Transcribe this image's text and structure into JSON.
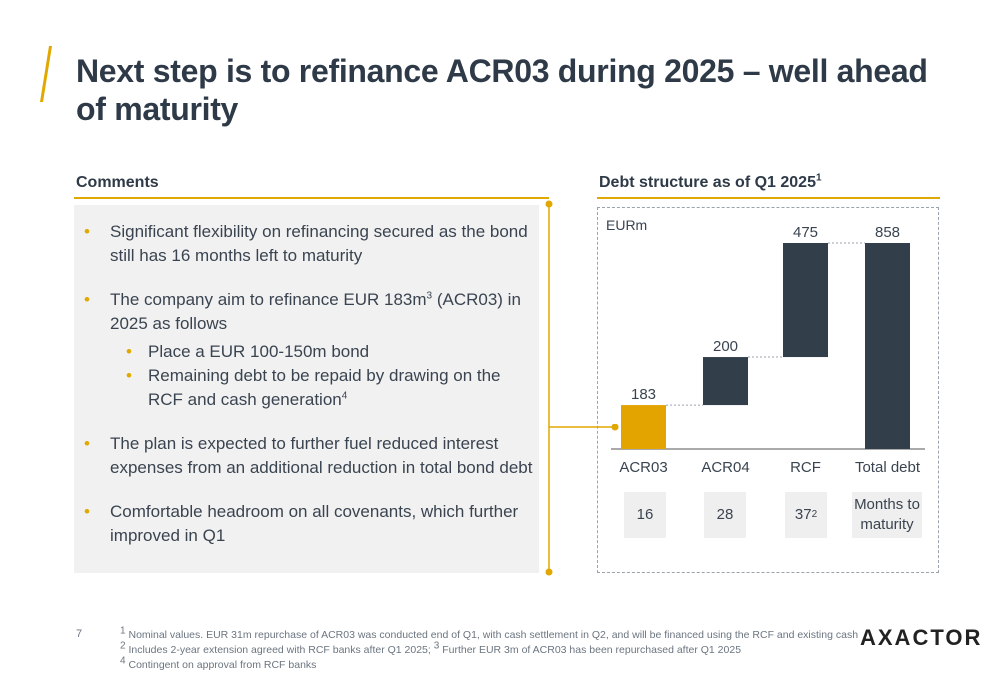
{
  "title": "Next step is to refinance ACR03 during 2025 – well ahead of maturity",
  "comments": {
    "heading": "Comments",
    "bullets": [
      {
        "text": "Significant flexibility on refinancing secured as the bond still has 16 months left to maturity"
      },
      {
        "text_pre": "The company aim to refinance EUR 183m",
        "sup": "3",
        "text_post": " (ACR03) in 2025 as follows",
        "sub": [
          {
            "text": "Place a EUR 100-150m bond"
          },
          {
            "text": "Remaining debt to be repaid by drawing on the RCF and cash generation",
            "sup": "4"
          }
        ]
      },
      {
        "text": "The plan is expected to further fuel reduced interest expenses from an additional reduction in total bond debt"
      },
      {
        "text": "Comfortable headroom on all covenants, which further improved in Q1"
      }
    ]
  },
  "chart_heading": {
    "text": "Debt structure as of Q1 2025",
    "sup": "1"
  },
  "chart_data": {
    "type": "bar",
    "subtype": "waterfall",
    "unit": "EURm",
    "categories": [
      "ACR03",
      "ACR04",
      "RCF",
      "Total debt"
    ],
    "values": [
      183,
      200,
      475,
      858
    ],
    "increments": [
      183,
      200,
      475,
      858
    ],
    "cumulative_end": [
      183,
      383,
      858,
      858
    ],
    "ylim": [
      0,
      858
    ],
    "colors": [
      "#e3a400",
      "#323e4a",
      "#323e4a",
      "#323e4a"
    ]
  },
  "months_to_maturity": {
    "values": [
      {
        "value": "16",
        "sup": ""
      },
      {
        "value": "28",
        "sup": ""
      },
      {
        "value": "37",
        "sup": "2"
      }
    ],
    "label": "Months to maturity"
  },
  "footnotes": {
    "page_number": "7",
    "lines": [
      {
        "sup": "1",
        "text": " Nominal values. EUR 31m repurchase of ACR03 was conducted end of Q1, with cash settlement in Q2, and will be financed using the RCF and existing cash"
      },
      {
        "sup": "2",
        "text": " Includes 2-year extension agreed with RCF banks after Q1 2025; ",
        "sup2": "3",
        "text2": " Further EUR 3m of ACR03 has been repurchased after Q1 2025"
      },
      {
        "sup": "4",
        "text": " Contingent on approval from RCF banks"
      }
    ]
  },
  "logo": "AXACTOR",
  "colors": {
    "accent": "#e0a800",
    "dark": "#2e3a47",
    "bar_dark": "#323e4a",
    "bar_gold": "#e3a400"
  }
}
